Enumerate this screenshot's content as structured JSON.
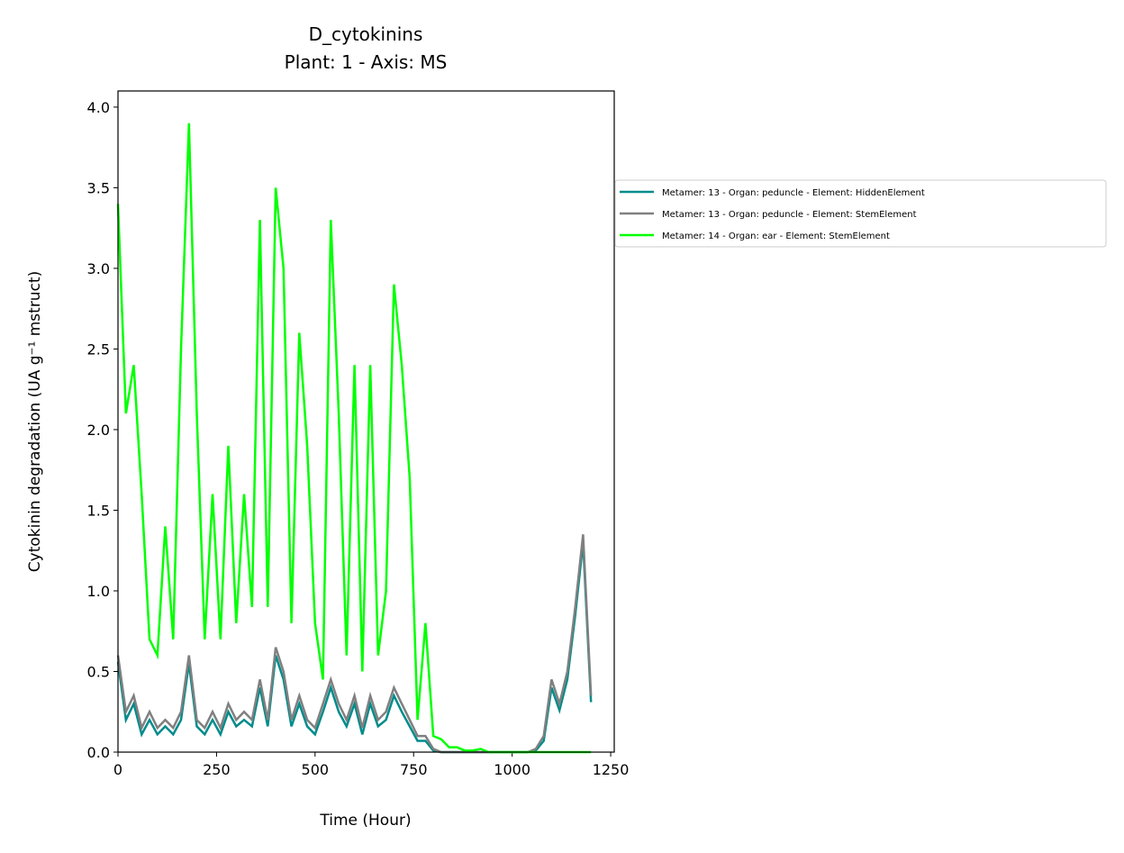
{
  "chart_data": {
    "type": "line",
    "title": "D_cytokinins",
    "subtitle": "Plant: 1 - Axis: MS",
    "x_label": "Time (Hour)",
    "y_label": "Cytokinin degradation (UA g⁻¹ mstruct)",
    "x": [
      0,
      20,
      40,
      60,
      80,
      100,
      120,
      140,
      160,
      180,
      200,
      220,
      240,
      260,
      280,
      300,
      320,
      340,
      360,
      380,
      400,
      420,
      440,
      460,
      480,
      500,
      520,
      540,
      560,
      580,
      600,
      620,
      640,
      660,
      680,
      700,
      720,
      740,
      760,
      780,
      800,
      820,
      840,
      860,
      880,
      900,
      920,
      940,
      960,
      980,
      1000,
      1020,
      1040,
      1060,
      1080,
      1100,
      1120,
      1140,
      1160,
      1180,
      1200
    ],
    "series": [
      {
        "name": "Metamer: 13 - Organ: peduncle - Element: HiddenElement",
        "color": "#008b8b",
        "values": [
          0.56,
          0.2,
          0.3,
          0.11,
          0.2,
          0.11,
          0.16,
          0.11,
          0.2,
          0.55,
          0.16,
          0.11,
          0.2,
          0.11,
          0.25,
          0.16,
          0.2,
          0.16,
          0.4,
          0.16,
          0.6,
          0.45,
          0.16,
          0.3,
          0.16,
          0.11,
          0.25,
          0.4,
          0.25,
          0.16,
          0.3,
          0.11,
          0.3,
          0.16,
          0.2,
          0.35,
          0.25,
          0.16,
          0.07,
          0.07,
          0.01,
          0,
          0,
          0,
          0,
          0,
          0,
          0,
          0,
          0,
          0,
          0,
          0,
          0.01,
          0.07,
          0.4,
          0.26,
          0.45,
          0.85,
          1.3,
          0.31
        ]
      },
      {
        "name": "Metamer: 13 - Organ: peduncle - Element: StemElement",
        "color": "#808080",
        "values": [
          0.6,
          0.25,
          0.35,
          0.15,
          0.25,
          0.15,
          0.2,
          0.15,
          0.25,
          0.6,
          0.2,
          0.15,
          0.25,
          0.15,
          0.3,
          0.2,
          0.25,
          0.2,
          0.45,
          0.2,
          0.65,
          0.5,
          0.2,
          0.35,
          0.2,
          0.15,
          0.3,
          0.45,
          0.3,
          0.2,
          0.35,
          0.15,
          0.35,
          0.2,
          0.25,
          0.4,
          0.3,
          0.2,
          0.1,
          0.1,
          0.02,
          0,
          0,
          0,
          0,
          0,
          0,
          0,
          0,
          0,
          0,
          0,
          0,
          0.02,
          0.1,
          0.45,
          0.3,
          0.5,
          0.9,
          1.35,
          0.35
        ]
      },
      {
        "name": "Metamer: 14 - Organ: ear - Element: StemElement",
        "color": "#00ff00",
        "values": [
          3.4,
          2.1,
          2.4,
          1.6,
          0.7,
          0.6,
          1.4,
          0.7,
          2.5,
          3.9,
          2.1,
          0.7,
          1.6,
          0.7,
          1.9,
          0.8,
          1.6,
          0.9,
          3.3,
          0.9,
          3.5,
          3.0,
          0.8,
          2.6,
          1.9,
          0.8,
          0.45,
          3.3,
          2.1,
          0.6,
          2.4,
          0.5,
          2.4,
          0.6,
          1.0,
          2.9,
          2.4,
          1.7,
          0.2,
          0.8,
          0.1,
          0.08,
          0.03,
          0.03,
          0.01,
          0.01,
          0.02,
          0,
          0,
          0,
          0,
          0,
          0,
          0,
          0,
          0,
          0,
          0,
          0,
          0,
          0
        ]
      }
    ],
    "xlim": [
      0,
      1259
    ],
    "ylim": [
      0,
      4.1
    ],
    "xticks": [
      0,
      250,
      500,
      750,
      1000,
      1250
    ],
    "yticks": [
      {
        "value": 0,
        "label": "0.0"
      },
      {
        "value": 0.5,
        "label": "0.5"
      },
      {
        "value": 1,
        "label": "1.0"
      },
      {
        "value": 1.5,
        "label": "1.5"
      },
      {
        "value": 2,
        "label": "2.0"
      },
      {
        "value": 2.5,
        "label": "2.5"
      },
      {
        "value": 3,
        "label": "3.0"
      },
      {
        "value": 3.5,
        "label": "3.5"
      },
      {
        "value": 4,
        "label": "4.0"
      }
    ],
    "legend": "outside-right"
  }
}
